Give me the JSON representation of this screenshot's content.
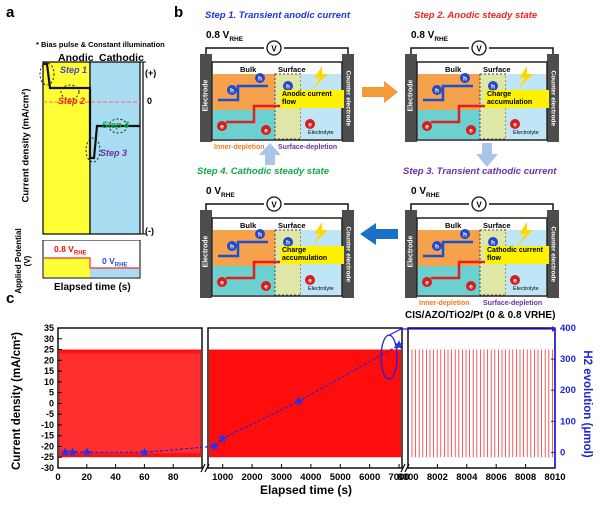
{
  "panel_labels": {
    "a": "a",
    "b": "b",
    "c": "c"
  },
  "panel_a": {
    "note": "* Bias pulse & Constant illumination",
    "anodic": "Anodic",
    "cathodic": "Cathodic",
    "y_label": "Current density (mA/cm²)",
    "plus": "(+)",
    "zero": "0",
    "minus": "(-)",
    "step1": "Step 1",
    "step2": "Step 2",
    "step3": "Step 3",
    "step4": "Step 4",
    "applied_label": "Applied Potential (V)",
    "v_high_main": "0.8 V",
    "v_high_sub": "RHE",
    "v_low_main": "0 V",
    "v_low_sub": "RHE",
    "x_label": "Elapsed time (s)"
  },
  "panel_b": {
    "step1_title": "Step 1. Transient anodic current",
    "step2_title": "Step 2. Anodic steady state",
    "step3_title": "Step 3. Transient cathodic current",
    "step4_title": "Step 4. Cathodic steady state",
    "v08_main": "0.8 V",
    "v0_main": "0 V",
    "v_sub": "RHE",
    "bulk": "Bulk",
    "surface": "Surface",
    "electrode": "Electrode",
    "counter": "Counter electrode",
    "electrolyte": "Electrolyte",
    "anodic_flow": "Anodic current flow",
    "charge_acc": "Charge accumulation",
    "cathodic_flow": "Cathodic current flow",
    "inner_depletion": "Inner-depletion",
    "surface_depletion": "Surface-depletion",
    "hole": "h",
    "electron": "e",
    "voltmeter": "V"
  },
  "chart_data": {
    "type": "line",
    "title": "CIS/AZO/TiO2/Pt (0 & 0.8 VRHE)",
    "ylabel": "Current density (mA/cm²)",
    "y2label": "H2 evolution (μmol)",
    "xlabel": "Elapsed time (s)",
    "ylim": [
      -30,
      35
    ],
    "y2lim": [
      -50,
      400
    ],
    "yticks": [
      "35",
      "30",
      "25",
      "20",
      "15",
      "10",
      "5",
      "0",
      "-5",
      "-10",
      "-15",
      "-20",
      "-25",
      "-30"
    ],
    "y2ticks": [
      "400",
      "300",
      "200",
      "100",
      "0"
    ],
    "segments": [
      {
        "xlim": [
          0,
          100
        ],
        "xticks": [
          "0",
          "20",
          "40",
          "60",
          "80"
        ]
      },
      {
        "xlim": [
          500,
          7100
        ],
        "xticks": [
          "1000",
          "2000",
          "3000",
          "4000",
          "5000",
          "6000",
          "7000"
        ]
      },
      {
        "xlim": [
          8000,
          8010
        ],
        "xticks": [
          "8000",
          "8002",
          "8004",
          "8006",
          "8008",
          "8010"
        ]
      }
    ],
    "current_envelope": {
      "upper": 25,
      "lower": -25
    },
    "series": [
      {
        "name": "H2 evolution",
        "x": [
          5,
          10,
          20,
          60,
          720,
          1000,
          3600,
          7000
        ],
        "y": [
          0,
          0,
          0,
          0,
          20,
          45,
          165,
          345
        ]
      }
    ]
  }
}
